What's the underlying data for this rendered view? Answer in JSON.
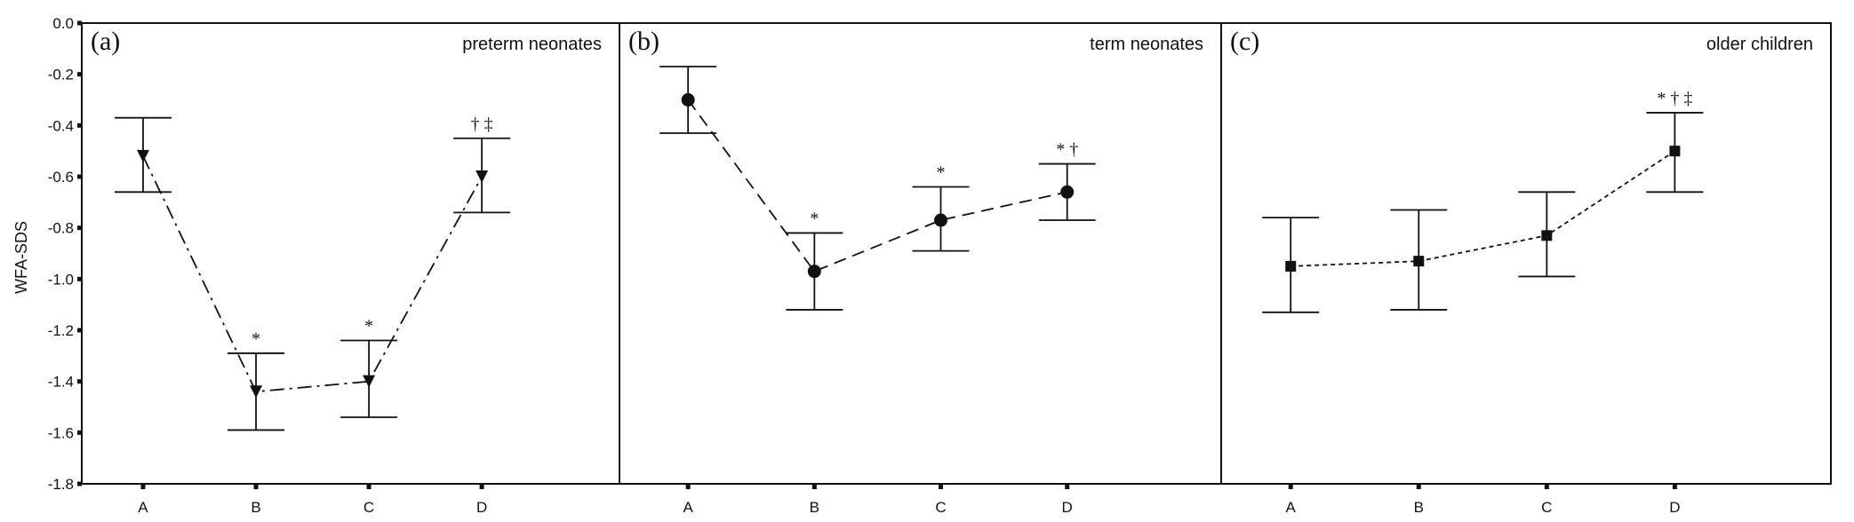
{
  "chart_data": {
    "type": "scatter",
    "ylabel": "WFA-SDS",
    "ylim": [
      -1.8,
      0.0
    ],
    "yticks": [
      "0.0",
      "-0.2",
      "-0.4",
      "-0.6",
      "-0.8",
      "-1.0",
      "-1.2",
      "-1.4",
      "-1.6",
      "-1.8"
    ],
    "categories": [
      "A",
      "B",
      "C",
      "D"
    ],
    "panels": [
      {
        "letter": "(a)",
        "title": "preterm neonates",
        "marker": "triangle-down",
        "line_style": "dash-dot",
        "points": [
          {
            "category": "A",
            "mean": -0.52,
            "lower": -0.66,
            "upper": -0.37,
            "sig": ""
          },
          {
            "category": "B",
            "mean": -1.44,
            "lower": -1.59,
            "upper": -1.29,
            "sig": "*"
          },
          {
            "category": "C",
            "mean": -1.4,
            "lower": -1.54,
            "upper": -1.24,
            "sig": "*"
          },
          {
            "category": "D",
            "mean": -0.6,
            "lower": -0.74,
            "upper": -0.45,
            "sig": "† ‡"
          }
        ]
      },
      {
        "letter": "(b)",
        "title": "term neonates",
        "marker": "circle",
        "line_style": "long-dash",
        "points": [
          {
            "category": "A",
            "mean": -0.3,
            "lower": -0.43,
            "upper": -0.17,
            "sig": ""
          },
          {
            "category": "B",
            "mean": -0.97,
            "lower": -1.12,
            "upper": -0.82,
            "sig": "*"
          },
          {
            "category": "C",
            "mean": -0.77,
            "lower": -0.89,
            "upper": -0.64,
            "sig": "*"
          },
          {
            "category": "D",
            "mean": -0.66,
            "lower": -0.77,
            "upper": -0.55,
            "sig": "* †"
          }
        ]
      },
      {
        "letter": "(c)",
        "title": "older children",
        "marker": "square",
        "line_style": "short-dash",
        "points": [
          {
            "category": "A",
            "mean": -0.95,
            "lower": -1.13,
            "upper": -0.76,
            "sig": ""
          },
          {
            "category": "B",
            "mean": -0.93,
            "lower": -1.12,
            "upper": -0.73,
            "sig": ""
          },
          {
            "category": "C",
            "mean": -0.83,
            "lower": -0.99,
            "upper": -0.66,
            "sig": ""
          },
          {
            "category": "D",
            "mean": -0.5,
            "lower": -0.66,
            "upper": -0.35,
            "sig": "* † ‡"
          }
        ]
      }
    ],
    "grid": false,
    "legend": "none"
  }
}
